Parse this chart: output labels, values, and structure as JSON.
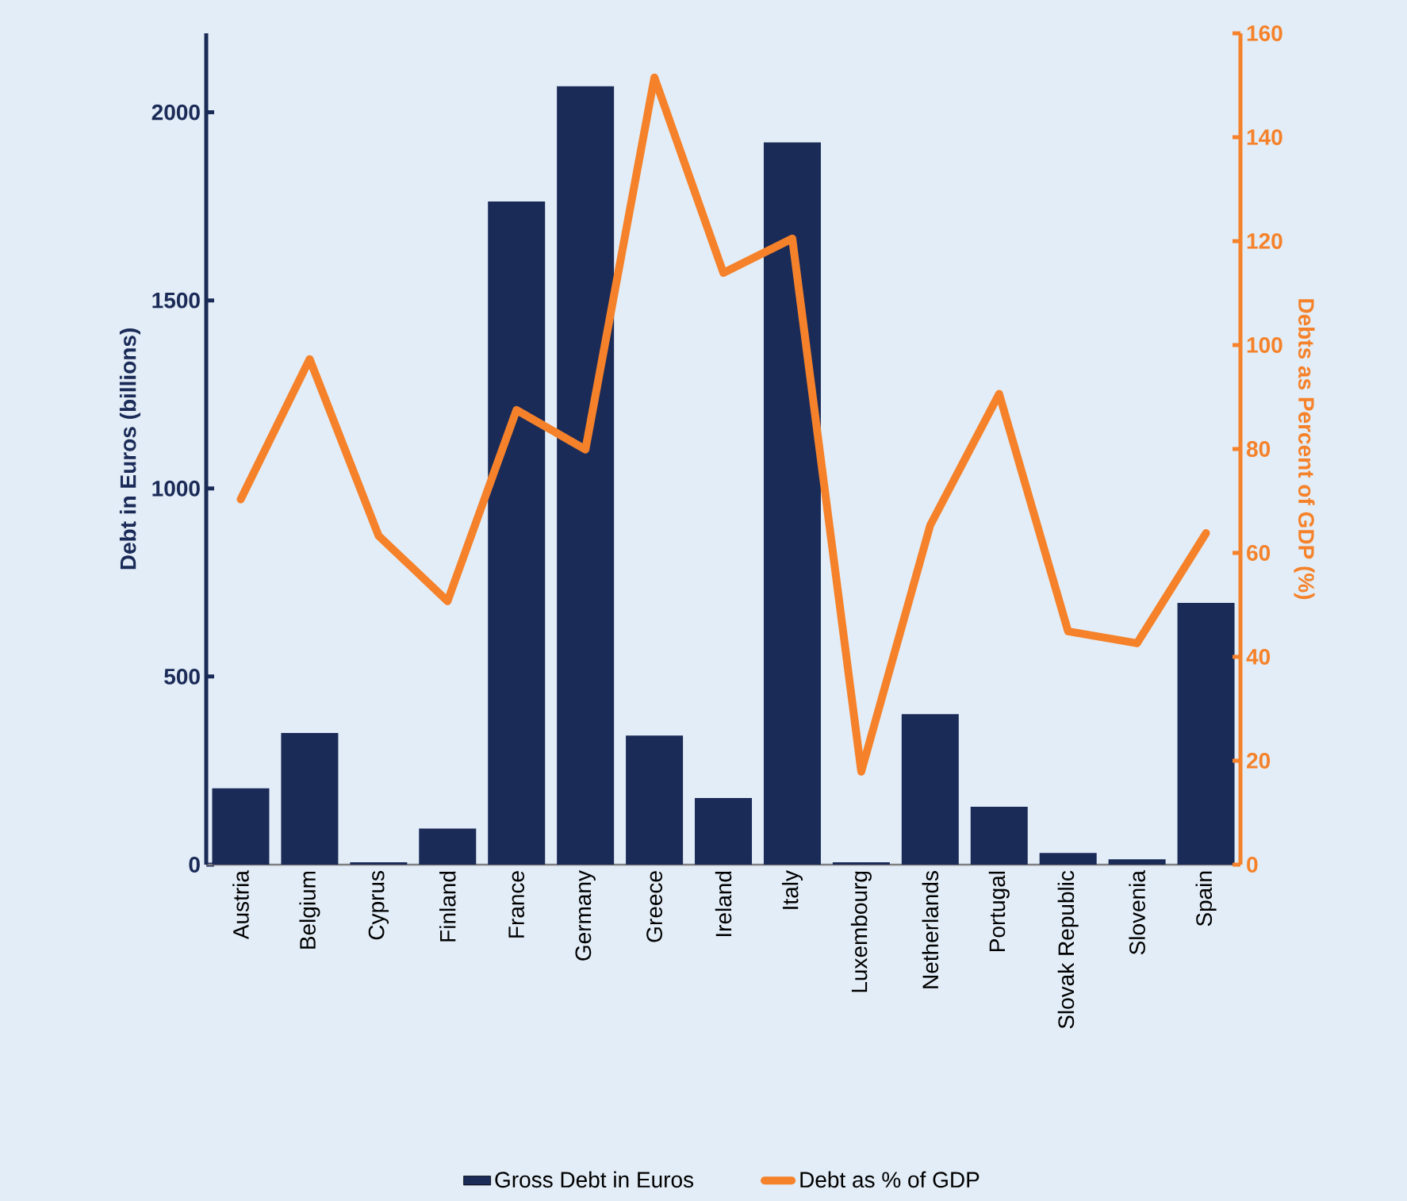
{
  "chart_data": {
    "type": "bar",
    "categories": [
      "Austria",
      "Belgium",
      "Cyprus",
      "Finland",
      "France",
      "Germany",
      "Greece",
      "Ireland",
      "Italy",
      "Luxembourg",
      "Netherlands",
      "Portugal",
      "Slovak Republic",
      "Slovenia",
      "Spain"
    ],
    "series": [
      {
        "name": "Gross Debt in Euros",
        "color": "#1b2b58",
        "values": [
          203,
          350,
          6,
          96,
          1763,
          2069,
          343,
          177,
          1920,
          6,
          400,
          154,
          31,
          14,
          696
        ]
      },
      {
        "name": "Debt as % of GDP",
        "type": "line",
        "axis": "y2",
        "color": "#f5822a",
        "values": [
          70.3,
          97.3,
          63.3,
          50.7,
          87.5,
          79.9,
          151.5,
          113.9,
          120.5,
          17.9,
          65.3,
          90.6,
          44.9,
          42.6,
          63.8
        ]
      }
    ],
    "ylabel": "Debt in Euros (billions)",
    "y2label": "Debts as Percent of GDP (%)",
    "ylim": [
      0,
      2210
    ],
    "yticks": [
      0,
      500,
      1000,
      1500,
      2000
    ],
    "y2lim": [
      0,
      160
    ],
    "y2ticks": [
      0,
      20,
      40,
      60,
      80,
      100,
      120,
      140,
      160
    ],
    "legend": "bottom"
  }
}
